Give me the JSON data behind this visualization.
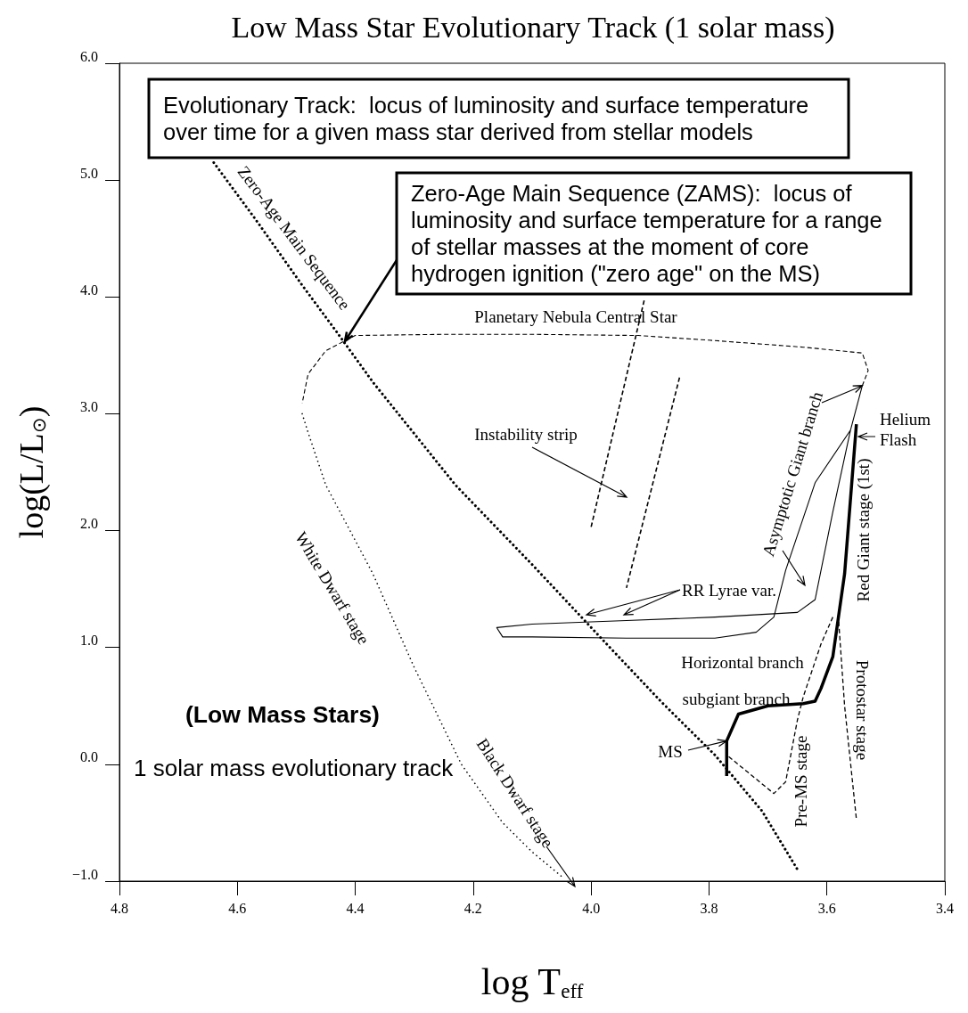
{
  "chart_data": {
    "type": "line",
    "title": "Low Mass Star Evolutionary Track (1 solar mass)",
    "xlabel": "log T$_{eff}$",
    "ylabel": "log(L/L$_{⊙}$)",
    "xlim": [
      4.8,
      3.4
    ],
    "xticks": [
      {
        "value": 4.8,
        "label": "4.8"
      },
      {
        "value": 4.6,
        "label": "4.6"
      },
      {
        "value": 4.4,
        "label": "4.4"
      },
      {
        "value": 4.2,
        "label": "4.2"
      },
      {
        "value": 4.0,
        "label": "4.0"
      },
      {
        "value": 3.8,
        "label": "3.8"
      },
      {
        "value": 3.6,
        "label": "3.6"
      },
      {
        "value": 3.4,
        "label": "3.4"
      }
    ],
    "ylim": [
      -1,
      6
    ],
    "yticks": [
      {
        "value": -1,
        "label": "−1.0"
      },
      {
        "value": 0,
        "label": "0.0"
      },
      {
        "value": 1,
        "label": "1.0"
      },
      {
        "value": 2,
        "label": "2.0"
      },
      {
        "value": 3,
        "label": "3.0"
      },
      {
        "value": 4,
        "label": "4.0"
      },
      {
        "value": 5,
        "label": "5.0"
      },
      {
        "value": 6,
        "label": "6.0"
      }
    ],
    "marker": "none",
    "series": [
      {
        "color": "#000000",
        "line_style": "dotted",
        "x": [
          4.64,
          4.57,
          4.49,
          4.43,
          4.37,
          4.23,
          4.1,
          3.97,
          3.88,
          3.79,
          3.71,
          3.65
        ],
        "values": [
          5.15,
          4.67,
          4.1,
          3.69,
          3.27,
          2.39,
          1.71,
          1.01,
          0.53,
          0.08,
          -0.4,
          -0.9
        ]
      },
      {
        "color": "#000000",
        "line_style": "solid",
        "x": [
          3.77,
          3.77,
          3.75,
          3.7,
          3.64,
          3.62,
          3.61,
          3.59,
          3.57,
          3.55
        ],
        "values": [
          -0.1,
          0.2,
          0.43,
          0.5,
          0.52,
          0.54,
          0.65,
          0.92,
          1.63,
          2.91
        ]
      },
      {
        "color": "#000000",
        "line_style": "solid",
        "x": [
          3.56,
          3.59,
          3.62,
          3.65,
          3.79,
          3.94,
          4.1,
          4.16,
          4.15,
          4.1,
          3.94,
          3.79,
          3.72,
          3.69,
          3.67,
          3.62,
          3.56,
          3.54
        ],
        "values": [
          2.86,
          2.16,
          1.41,
          1.3,
          1.26,
          1.23,
          1.2,
          1.17,
          1.09,
          1.09,
          1.08,
          1.08,
          1.13,
          1.26,
          1.66,
          2.41,
          2.86,
          3.24
        ]
      },
      {
        "color": "#000000",
        "line_style": "dashed",
        "x": [
          3.54,
          3.53,
          3.54,
          3.64,
          3.8,
          3.92,
          4.1,
          4.25,
          4.4,
          4.45,
          4.48,
          4.49
        ],
        "values": [
          3.24,
          3.37,
          3.52,
          3.57,
          3.63,
          3.67,
          3.68,
          3.68,
          3.67,
          3.54,
          3.34,
          3.09
        ]
      },
      {
        "color": "#000000",
        "line_style": "dotted",
        "x": [
          4.49,
          4.48,
          4.45,
          4.37,
          4.3,
          4.22,
          4.15,
          4.1,
          4.05
        ],
        "values": [
          3.0,
          2.84,
          2.39,
          1.63,
          0.83,
          0.0,
          -0.5,
          -0.75,
          -0.96
        ]
      },
      {
        "color": "#000000",
        "line_style": "dashed",
        "x": [
          3.91,
          4.0
        ],
        "values": [
          3.97,
          2.03
        ]
      },
      {
        "color": "#000000",
        "line_style": "dashed",
        "x": [
          3.85,
          3.94
        ],
        "values": [
          3.31,
          1.51
        ]
      },
      {
        "color": "#000000",
        "line_style": "dashed",
        "x": [
          3.59,
          3.61,
          3.64,
          3.65,
          3.67,
          3.69,
          3.77
        ],
        "values": [
          1.26,
          1.03,
          0.58,
          0.38,
          -0.15,
          -0.25,
          0.08
        ]
      },
      {
        "color": "#000000",
        "line_style": "dashed",
        "x": [
          3.58,
          3.57,
          3.55
        ],
        "values": [
          1.22,
          0.5,
          -0.47
        ]
      }
    ],
    "annotations": [
      "Evolutionary Track:  locus of luminosity and surface temperature over time for a given mass star derived from stellar models",
      "Zero-Age Main Sequence (ZAMS):  locus of luminosity and surface temperature for a range of stellar masses at the moment of core hydrogen ignition (\"zero age\" on the MS)",
      "Zero-Age Main Sequence",
      "Planetary Nebula Central Star",
      "Instability strip",
      "RR Lyrae var.",
      "Helium Flash",
      {
        "text": "Asymptotic Giant branch",
        "x": 3.54,
        "y": 3.24
      },
      "Red Giant stage (1st)",
      "Horizontal branch",
      "subgiant branch",
      {
        "text": "MS",
        "x": 3.77,
        "y": 0.2
      },
      "Pre-MS stage",
      "Protostar stage",
      "White Dwarf stage",
      "Black Dwarf stage",
      "(Low Mass Stars)",
      "1 solar mass evolutionary track"
    ]
  }
}
